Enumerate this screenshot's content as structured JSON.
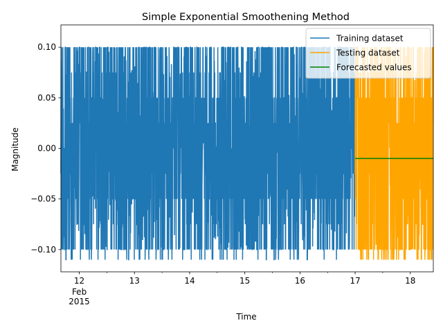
{
  "chart_data": {
    "type": "line",
    "title": "Simple Exponential Smoothening Method",
    "xlabel": "Time",
    "ylabel": "Magnitude",
    "x_range": [
      "2015-02-11 16:00",
      "2015-02-18 10:00"
    ],
    "ylim": [
      -0.122,
      0.122
    ],
    "x_ticks": [
      {
        "date": "2015-02-12",
        "label": "12",
        "sub": [
          "Feb",
          "2015"
        ]
      },
      {
        "date": "2015-02-13",
        "label": "13"
      },
      {
        "date": "2015-02-14",
        "label": "14"
      },
      {
        "date": "2015-02-15",
        "label": "15"
      },
      {
        "date": "2015-02-16",
        "label": "16"
      },
      {
        "date": "2015-02-17",
        "label": "17"
      },
      {
        "date": "2015-02-18",
        "label": "18"
      }
    ],
    "y_ticks": [
      {
        "value": 0.1,
        "label": "0.10"
      },
      {
        "value": 0.05,
        "label": "0.05"
      },
      {
        "value": 0.0,
        "label": "0.00"
      },
      {
        "value": -0.05,
        "label": "−0.05"
      },
      {
        "value": -0.1,
        "label": "−0.10"
      }
    ],
    "grid": false,
    "legend_position": "top-right",
    "series": [
      {
        "name": "Training dataset",
        "color": "#1f77b4",
        "style": "noisy-signal",
        "x_start": "2015-02-11 16:00",
        "x_end": "2015-02-17 00:00",
        "values": [
          0.025,
          -0.025,
          0.1,
          -0.1,
          0.05,
          -0.05,
          0.1,
          -0.1,
          0.075,
          -0.075,
          0.1,
          -0.1,
          0.025,
          -0.05,
          0.1,
          -0.1,
          0.05,
          0.0,
          0.1,
          -0.11
        ]
      },
      {
        "name": "Testing dataset",
        "color": "#ffa500",
        "style": "noisy-signal",
        "x_start": "2015-02-17 00:00",
        "x_end": "2015-02-18 10:00",
        "values": [
          0.1,
          -0.1,
          0.05,
          -0.11,
          0.075,
          -0.1,
          0.1,
          -0.075,
          0.05,
          -0.1
        ]
      },
      {
        "name": "Forecasted values",
        "color": "#008000",
        "style": "constant",
        "x_start": "2015-02-17 00:00",
        "x_end": "2015-02-18 10:00",
        "values": [
          -0.01,
          -0.01
        ]
      }
    ]
  }
}
